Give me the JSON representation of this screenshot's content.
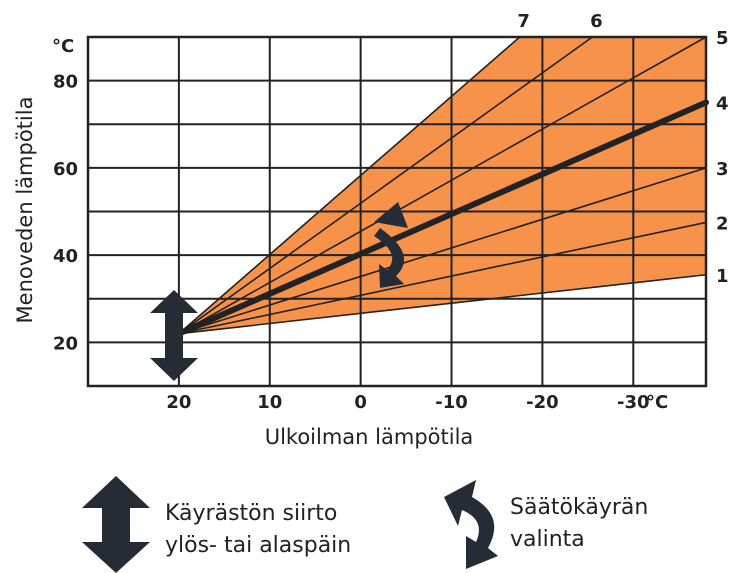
{
  "chart_data": {
    "type": "line",
    "xlabel": "Ulkoilman lämpötila",
    "ylabel": "Menoveden lämpötila",
    "y_unit_label": "°C",
    "x_unit_label": "°C",
    "x_ticks": [
      "20",
      "10",
      "0",
      "-10",
      "-20",
      "-30"
    ],
    "y_ticks": [
      "20",
      "40",
      "60",
      "80"
    ],
    "xlim": [
      30,
      -38
    ],
    "ylim": [
      10,
      90
    ],
    "grid": true,
    "fill_color": "#f7924a",
    "line_color": "#222222",
    "highlighted_series": "4",
    "series": [
      {
        "name": "1",
        "x": [
          20,
          -38
        ],
        "y": [
          22,
          35.5
        ]
      },
      {
        "name": "2",
        "x": [
          20,
          -38
        ],
        "y": [
          22,
          47.5
        ]
      },
      {
        "name": "3",
        "x": [
          20,
          -38
        ],
        "y": [
          22,
          60
        ]
      },
      {
        "name": "4",
        "x": [
          20,
          -38
        ],
        "y": [
          22,
          75
        ]
      },
      {
        "name": "5",
        "x": [
          20,
          -38
        ],
        "y": [
          22,
          90
        ]
      },
      {
        "name": "6",
        "x": [
          20,
          -25.5
        ],
        "y": [
          22,
          90
        ]
      },
      {
        "name": "7",
        "x": [
          20,
          -17.5
        ],
        "y": [
          22,
          90
        ]
      }
    ]
  },
  "legend": {
    "shift_text_line1": "Käyrästön siirto",
    "shift_text_line2": "ylös- tai alaspäin",
    "select_text_line1": "Säätökäyrän",
    "select_text_line2": "valinta"
  }
}
